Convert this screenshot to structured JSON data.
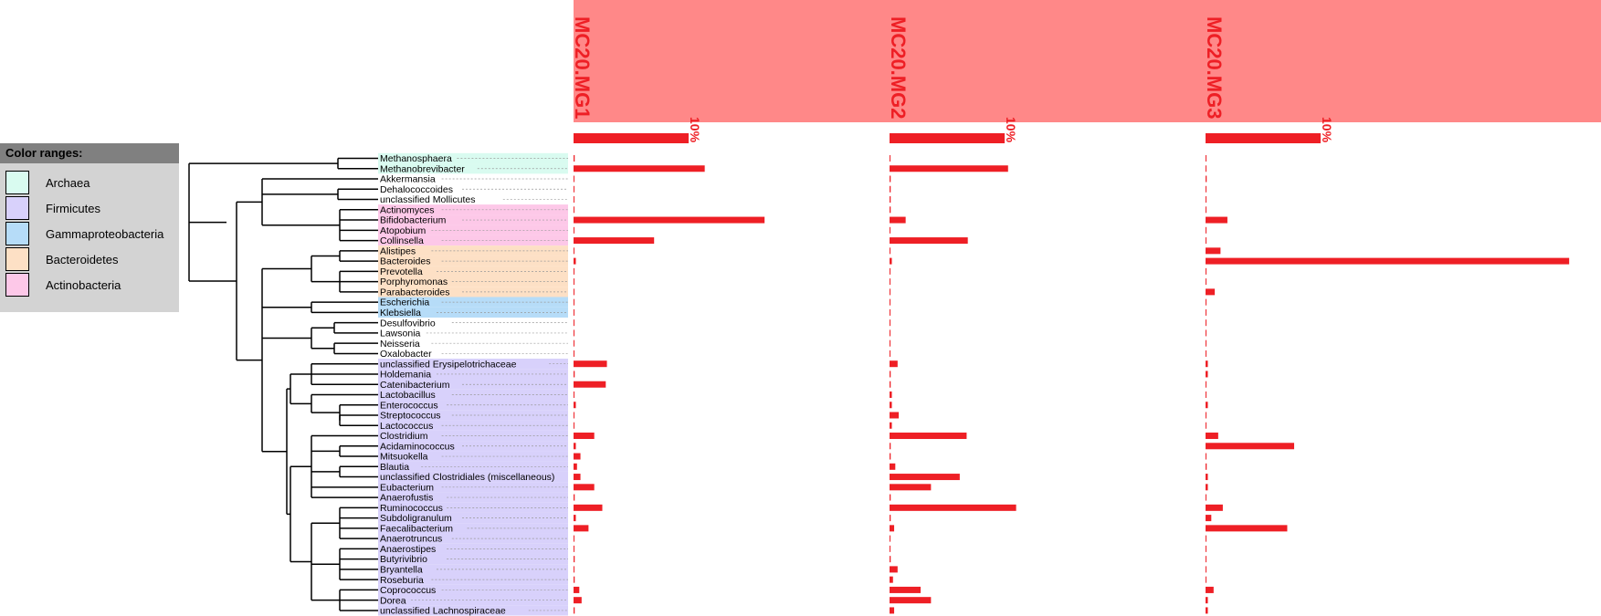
{
  "legend": {
    "title": "Color ranges:",
    "items": [
      {
        "label": "Archaea",
        "color": "#d9fbf0"
      },
      {
        "label": "Firmicutes",
        "color": "#d8d1fb"
      },
      {
        "label": "Gammaproteobacteria",
        "color": "#b6dcf8"
      },
      {
        "label": "Bacteroidetes",
        "color": "#fde0c5"
      },
      {
        "label": "Actinobacteria",
        "color": "#fdc8e8"
      }
    ]
  },
  "colors": {
    "bar": "#ee1f25",
    "header_band": "#ff8888",
    "header_text": "#ee1f25",
    "tree_line": "#000000"
  },
  "chart_data": {
    "type": "bar",
    "orientation": "horizontal",
    "scale_label": "10%",
    "scale_value": 10,
    "samples": [
      "MC20.MG1",
      "MC20.MG2",
      "MC20.MG3"
    ],
    "taxa": [
      {
        "name": "Methanosphaera",
        "group": "Archaea"
      },
      {
        "name": "Methanobrevibacter",
        "group": "Archaea"
      },
      {
        "name": "Akkermansia",
        "group": ""
      },
      {
        "name": "Dehalococcoides",
        "group": ""
      },
      {
        "name": "unclassified Mollicutes",
        "group": ""
      },
      {
        "name": "Actinomyces",
        "group": "Actinobacteria"
      },
      {
        "name": "Bifidobacterium",
        "group": "Actinobacteria"
      },
      {
        "name": "Atopobium",
        "group": "Actinobacteria"
      },
      {
        "name": "Collinsella",
        "group": "Actinobacteria"
      },
      {
        "name": "Alistipes",
        "group": "Bacteroidetes"
      },
      {
        "name": "Bacteroides",
        "group": "Bacteroidetes"
      },
      {
        "name": "Prevotella",
        "group": "Bacteroidetes"
      },
      {
        "name": "Porphyromonas",
        "group": "Bacteroidetes"
      },
      {
        "name": "Parabacteroides",
        "group": "Bacteroidetes"
      },
      {
        "name": "Escherichia",
        "group": "Gammaproteobacteria"
      },
      {
        "name": "Klebsiella",
        "group": "Gammaproteobacteria"
      },
      {
        "name": "Desulfovibrio",
        "group": ""
      },
      {
        "name": "Lawsonia",
        "group": ""
      },
      {
        "name": "Neisseria",
        "group": ""
      },
      {
        "name": "Oxalobacter",
        "group": ""
      },
      {
        "name": "unclassified Erysipelotrichaceae",
        "group": "Firmicutes"
      },
      {
        "name": "Holdemania",
        "group": "Firmicutes"
      },
      {
        "name": "Catenibacterium",
        "group": "Firmicutes"
      },
      {
        "name": "Lactobacillus",
        "group": "Firmicutes"
      },
      {
        "name": "Enterococcus",
        "group": "Firmicutes"
      },
      {
        "name": "Streptococcus",
        "group": "Firmicutes"
      },
      {
        "name": "Lactococcus",
        "group": "Firmicutes"
      },
      {
        "name": "Clostridium",
        "group": "Firmicutes"
      },
      {
        "name": "Acidaminococcus",
        "group": "Firmicutes"
      },
      {
        "name": "Mitsuokella",
        "group": "Firmicutes"
      },
      {
        "name": "Blautia",
        "group": "Firmicutes"
      },
      {
        "name": "unclassified Clostridiales (miscellaneous)",
        "group": "Firmicutes"
      },
      {
        "name": "Eubacterium",
        "group": "Firmicutes"
      },
      {
        "name": "Anaerofustis",
        "group": "Firmicutes"
      },
      {
        "name": "Ruminococcus",
        "group": "Firmicutes"
      },
      {
        "name": "Subdoligranulum",
        "group": "Firmicutes"
      },
      {
        "name": "Faecalibacterium",
        "group": "Firmicutes"
      },
      {
        "name": "Anaerotruncus",
        "group": "Firmicutes"
      },
      {
        "name": "Anaerostipes",
        "group": "Firmicutes"
      },
      {
        "name": "Butyrivibrio",
        "group": "Firmicutes"
      },
      {
        "name": "Bryantella",
        "group": "Firmicutes"
      },
      {
        "name": "Roseburia",
        "group": "Firmicutes"
      },
      {
        "name": "Coprococcus",
        "group": "Firmicutes"
      },
      {
        "name": "Dorea",
        "group": "Firmicutes"
      },
      {
        "name": "unclassified Lachnospiraceae",
        "group": "Firmicutes"
      }
    ],
    "series": [
      {
        "name": "MC20.MG1",
        "values": [
          0.1,
          11.4,
          0.05,
          0.05,
          0.05,
          0.05,
          16.6,
          0.05,
          7.0,
          0.05,
          0.2,
          0.05,
          0.05,
          0.05,
          0.05,
          0.05,
          0.05,
          0.05,
          0.05,
          0.05,
          2.9,
          0.1,
          2.8,
          0.05,
          0.2,
          0.05,
          0.05,
          1.8,
          0.2,
          0.6,
          0.3,
          0.6,
          1.8,
          0.1,
          2.5,
          0.2,
          1.3,
          0.05,
          0.05,
          0.1,
          0.05,
          0.1,
          0.5,
          0.7,
          0.1
        ]
      },
      {
        "name": "MC20.MG2",
        "values": [
          0.05,
          10.3,
          0.1,
          0.1,
          0.1,
          0.1,
          1.4,
          0.05,
          6.8,
          0.05,
          0.2,
          0.05,
          0.05,
          0.05,
          0.05,
          0.05,
          0.05,
          0.05,
          0.05,
          0.05,
          0.7,
          0.1,
          0.1,
          0.2,
          0.2,
          0.8,
          0.2,
          6.7,
          0.1,
          0.1,
          0.5,
          6.1,
          3.6,
          0.1,
          11.0,
          0.1,
          0.4,
          0.05,
          0.05,
          0.1,
          0.7,
          0.3,
          2.7,
          3.6,
          0.4
        ]
      },
      {
        "name": "MC20.MG3",
        "values": [
          0.05,
          0.05,
          0.1,
          0.05,
          0.05,
          0.05,
          1.9,
          0.05,
          0.05,
          1.3,
          31.6,
          0.05,
          0.05,
          0.8,
          0.05,
          0.05,
          0.05,
          0.05,
          0.05,
          0.05,
          0.2,
          0.2,
          0.05,
          0.05,
          0.2,
          0.05,
          0.05,
          1.1,
          7.7,
          0.05,
          0.1,
          0.2,
          0.2,
          0.05,
          1.5,
          0.5,
          7.1,
          0.05,
          0.05,
          0.05,
          0.05,
          0.05,
          0.7,
          0.2,
          0.2
        ]
      }
    ]
  }
}
